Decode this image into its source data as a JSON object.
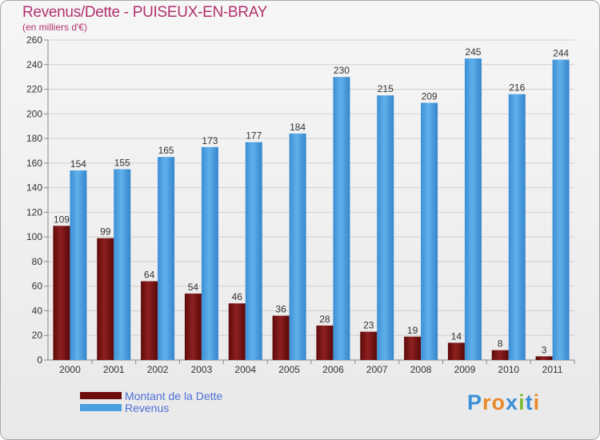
{
  "title": "Revenus/Dette - PUISEUX-EN-BRAY",
  "subtitle": "(en milliers d'€)",
  "legend": [
    {
      "label": "Montant de la Dette",
      "color": "#7a1010"
    },
    {
      "label": "Revenus",
      "color": "#4a9fe0"
    }
  ],
  "logo": {
    "text": "Proxiti",
    "letters": [
      "P",
      "r",
      "o",
      "x",
      "i",
      "t",
      "i"
    ],
    "colors": [
      "#3a8fd8",
      "#e8892b",
      "#e8892b",
      "#3a8fd8",
      "#7dbb3a",
      "#3a8fd8",
      "#e8892b"
    ]
  },
  "chart_data": {
    "type": "bar",
    "title": "Revenus/Dette - PUISEUX-EN-BRAY",
    "ylabel": "(en milliers d'€)",
    "categories": [
      "2000",
      "2001",
      "2002",
      "2003",
      "2004",
      "2005",
      "2006",
      "2007",
      "2008",
      "2009",
      "2010",
      "2011"
    ],
    "series": [
      {
        "name": "Montant de la Dette",
        "color": "#7a1010",
        "values": [
          109,
          99,
          64,
          54,
          46,
          36,
          28,
          23,
          19,
          14,
          8,
          3
        ]
      },
      {
        "name": "Revenus",
        "color": "#4a9fe0",
        "values": [
          154,
          155,
          165,
          173,
          177,
          184,
          230,
          215,
          209,
          245,
          216,
          244
        ]
      }
    ],
    "ylim": [
      0,
      260
    ],
    "yticks": [
      0,
      20,
      40,
      60,
      80,
      100,
      120,
      140,
      160,
      180,
      200,
      220,
      240,
      260
    ],
    "grid": true,
    "legend_position": "bottom-left"
  }
}
